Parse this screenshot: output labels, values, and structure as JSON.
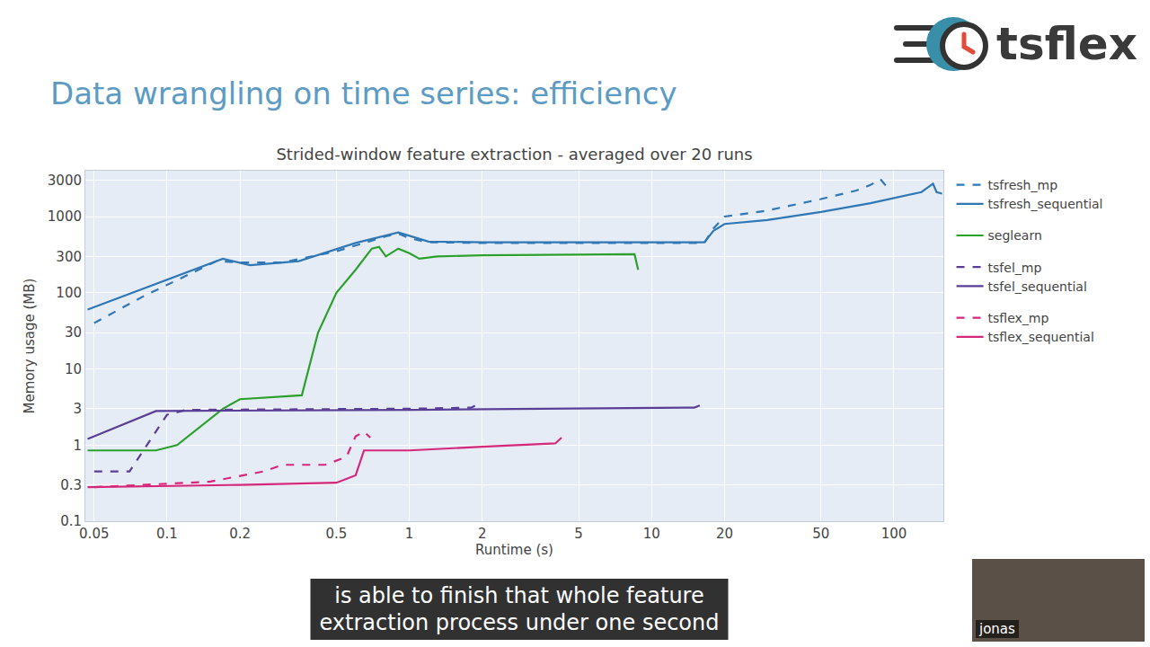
{
  "slide": {
    "heading": "Data wrangling on time series: efficiency",
    "logo": "tsflex",
    "caption": [
      "is able to finish that whole feature",
      "extraction process under one second"
    ],
    "speaker": "jonas"
  },
  "chart_data": {
    "type": "line",
    "title": "Strided-window feature extraction - averaged over 20 runs",
    "x_label": "Runtime (s)",
    "y_label": "Memory usage (MB)",
    "log": true,
    "grid": true,
    "legend": "right",
    "xlim": [
      0.046,
      160
    ],
    "ylim": [
      0.1,
      4000
    ],
    "xticks": [
      0.05,
      0.1,
      0.2,
      0.5,
      1,
      2,
      5,
      10,
      20,
      50,
      100
    ],
    "yticks": [
      0.1,
      0.3,
      1,
      3,
      10,
      30,
      100,
      300,
      1000,
      3000
    ],
    "series": [
      {
        "name": "tsfresh_mp",
        "color": "#2f77b5",
        "line_style": "dash",
        "x": [
          0.05,
          0.08,
          0.16,
          0.2,
          0.3,
          0.5,
          0.8,
          0.9,
          1.0,
          1.2,
          2,
          5,
          10,
          16.5,
          18,
          20,
          30,
          50,
          70,
          80,
          88,
          93
        ],
        "values": [
          40,
          90,
          260,
          250,
          250,
          350,
          550,
          600,
          520,
          460,
          450,
          450,
          450,
          450,
          700,
          1000,
          1200,
          1700,
          2200,
          2600,
          3100,
          2500
        ]
      },
      {
        "name": "tsfresh_sequential",
        "color": "#2f77b5",
        "line_style": "solid",
        "x": [
          0.047,
          0.17,
          0.22,
          0.35,
          0.6,
          0.9,
          1.0,
          1.2,
          2,
          5,
          10,
          16.5,
          18,
          20,
          30,
          50,
          80,
          100,
          130,
          145,
          150,
          158
        ],
        "values": [
          60,
          280,
          230,
          260,
          450,
          620,
          560,
          470,
          460,
          460,
          460,
          460,
          650,
          800,
          900,
          1150,
          1500,
          1750,
          2100,
          2700,
          2100,
          2000
        ]
      },
      {
        "name": "seglearn",
        "color": "#2ca02c",
        "line_style": "solid",
        "x": [
          0.047,
          0.09,
          0.11,
          0.17,
          0.2,
          0.3,
          0.36,
          0.42,
          0.5,
          0.6,
          0.7,
          0.75,
          0.8,
          0.9,
          1.0,
          1.1,
          1.3,
          2,
          5,
          8.5,
          8.8
        ],
        "values": [
          0.85,
          0.85,
          1,
          3,
          4,
          4.3,
          4.5,
          30,
          100,
          200,
          380,
          400,
          300,
          380,
          330,
          280,
          300,
          310,
          320,
          320,
          200
        ]
      },
      {
        "name": "tsfel_mp",
        "color": "#5a3e96",
        "line_style": "dash",
        "x": [
          0.05,
          0.07,
          0.1,
          0.12,
          1,
          1.8,
          1.95
        ],
        "values": [
          0.45,
          0.45,
          2.5,
          2.9,
          3,
          3.1,
          3.5
        ]
      },
      {
        "name": "tsfel_sequential",
        "color": "#5a3e96",
        "line_style": "solid",
        "x": [
          0.047,
          0.09,
          1,
          5,
          15,
          15.8
        ],
        "values": [
          1.2,
          2.8,
          2.9,
          3.0,
          3.1,
          3.3
        ]
      },
      {
        "name": "tsflex_mp",
        "color": "#d6287a",
        "line_style": "dash",
        "x": [
          0.05,
          0.15,
          0.25,
          0.3,
          0.45,
          0.55,
          0.6,
          0.65,
          0.69
        ],
        "values": [
          0.28,
          0.33,
          0.45,
          0.55,
          0.55,
          0.7,
          1.3,
          1.5,
          1.25
        ]
      },
      {
        "name": "tsflex_sequential",
        "color": "#d6287a",
        "line_style": "solid",
        "x": [
          0.047,
          0.2,
          0.5,
          0.6,
          0.65,
          1,
          2,
          4,
          4.25
        ],
        "values": [
          0.28,
          0.3,
          0.32,
          0.4,
          0.85,
          0.85,
          0.95,
          1.05,
          1.25
        ]
      }
    ]
  }
}
